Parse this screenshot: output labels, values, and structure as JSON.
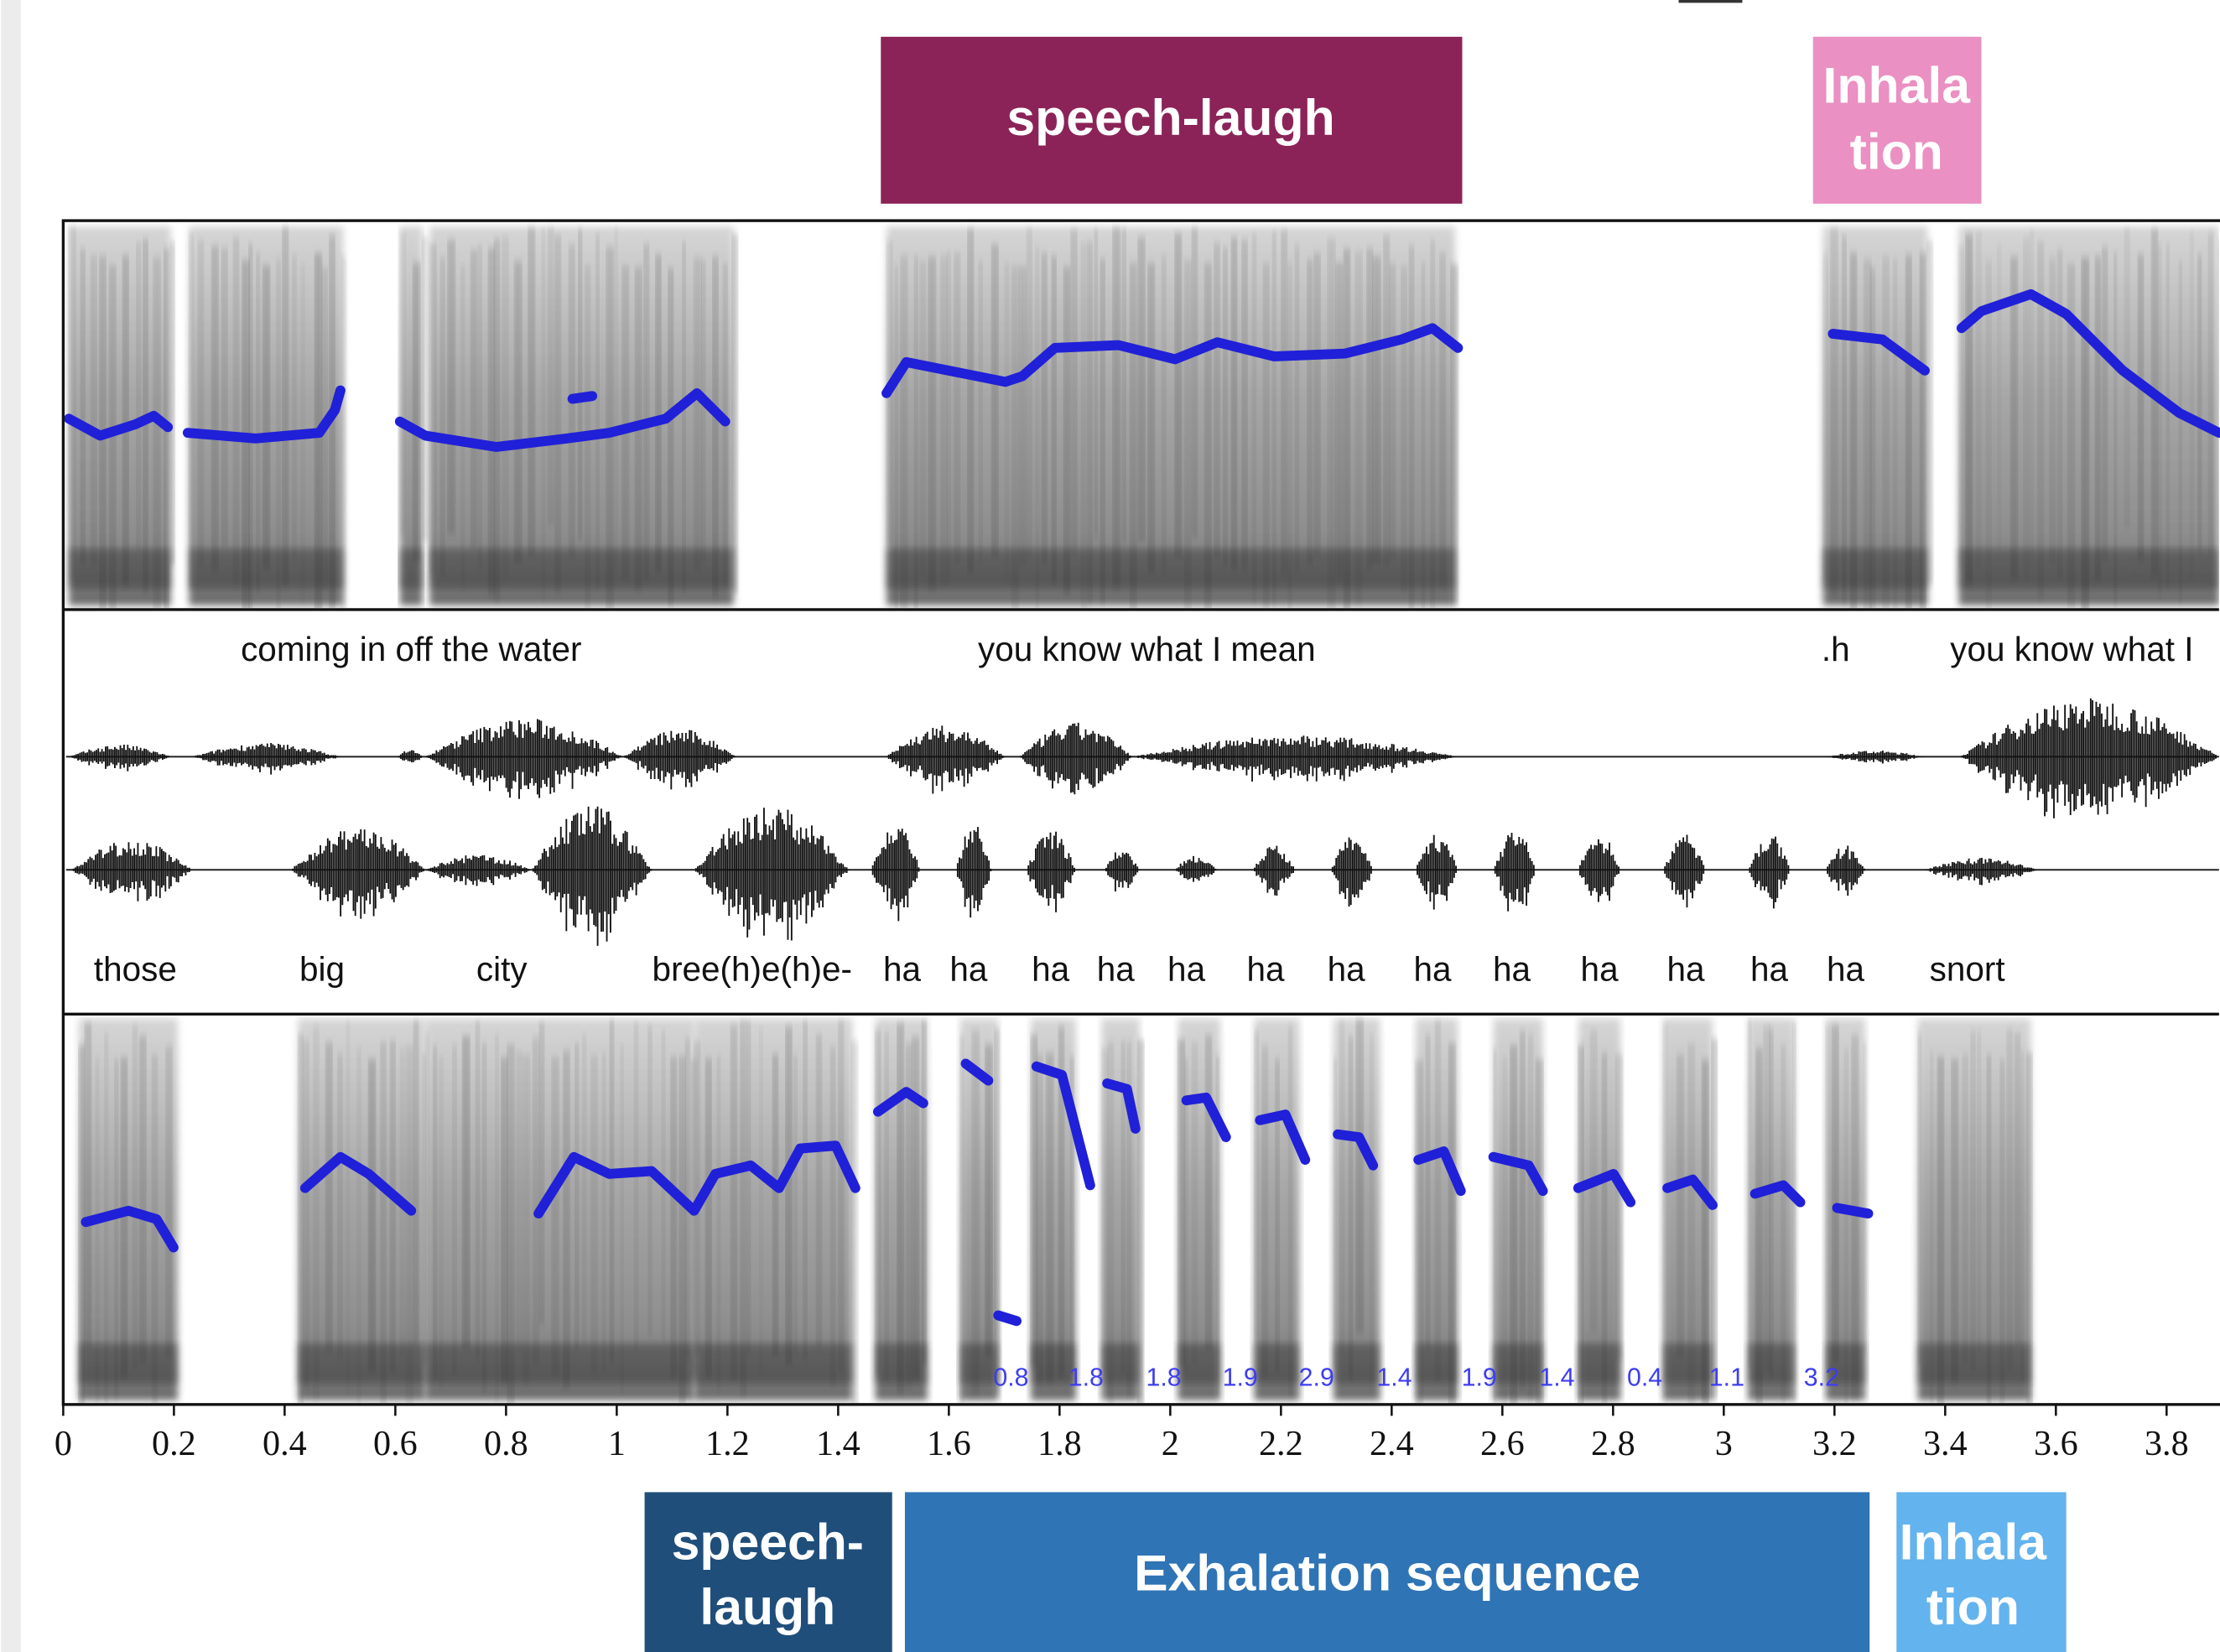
{
  "top_labels": [
    {
      "text": "speech-laugh"
    },
    {
      "lines": [
        "Inhala",
        "tion"
      ]
    }
  ],
  "upper_transcript": [
    "coming in off the water",
    "you know what I mean",
    ".h",
    "you know what I"
  ],
  "lower_transcript": [
    "those",
    "big",
    "city",
    "bree(h)e(h)e-",
    "ha",
    "ha",
    "ha",
    "ha",
    "ha",
    "ha",
    "ha",
    "ha",
    "ha",
    "ha",
    "ha",
    "ha",
    "ha",
    "snort"
  ],
  "interval_values": [
    0.8,
    1.8,
    1.8,
    1.9,
    2.9,
    1.4,
    1.9,
    1.4,
    0.4,
    1.1,
    3.2
  ],
  "time_axis": {
    "ticks": [
      0,
      0.2,
      0.4,
      0.6,
      0.8,
      1,
      1.2,
      1.4,
      1.6,
      1.8,
      2,
      2.2,
      2.4,
      2.6,
      2.8,
      3,
      3.2,
      3.4,
      3.6,
      3.8
    ]
  },
  "bottom_labels": [
    {
      "lines": [
        "speech-",
        "laugh"
      ]
    },
    {
      "text": "Exhalation sequence"
    },
    {
      "lines": [
        "Inhala",
        "tion"
      ]
    }
  ]
}
